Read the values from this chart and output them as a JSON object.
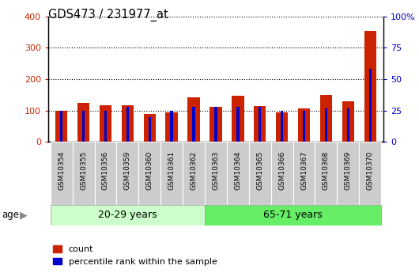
{
  "title": "GDS473 / 231977_at",
  "samples": [
    "GSM10354",
    "GSM10355",
    "GSM10356",
    "GSM10359",
    "GSM10360",
    "GSM10361",
    "GSM10362",
    "GSM10363",
    "GSM10364",
    "GSM10365",
    "GSM10366",
    "GSM10367",
    "GSM10368",
    "GSM10369",
    "GSM10370"
  ],
  "counts": [
    100,
    125,
    118,
    118,
    90,
    95,
    143,
    113,
    147,
    115,
    95,
    108,
    150,
    130,
    355
  ],
  "percentiles": [
    25,
    25,
    25,
    28,
    20,
    25,
    28,
    28,
    28,
    28,
    25,
    25,
    27,
    27,
    58
  ],
  "group1_label": "20-29 years",
  "group2_label": "65-71 years",
  "group1_indices": [
    0,
    1,
    2,
    3,
    4,
    5,
    6
  ],
  "group2_indices": [
    7,
    8,
    9,
    10,
    11,
    12,
    13,
    14
  ],
  "age_label": "age",
  "ylim_left": [
    0,
    400
  ],
  "ylim_right": [
    0,
    100
  ],
  "yticks_left": [
    0,
    100,
    200,
    300,
    400
  ],
  "yticks_right": [
    0,
    25,
    50,
    75,
    100
  ],
  "ytick_labels_right": [
    "0",
    "25",
    "50",
    "75",
    "100%"
  ],
  "bar_color": "#cc2200",
  "percentile_color": "#0000cc",
  "group1_bg": "#ccffcc",
  "group2_bg": "#66ee66",
  "tick_label_bg": "#cccccc",
  "grid_color": "#000000",
  "legend_count": "count",
  "legend_pct": "percentile rank within the sample",
  "red_bar_width": 0.55,
  "blue_bar_width": 0.12
}
